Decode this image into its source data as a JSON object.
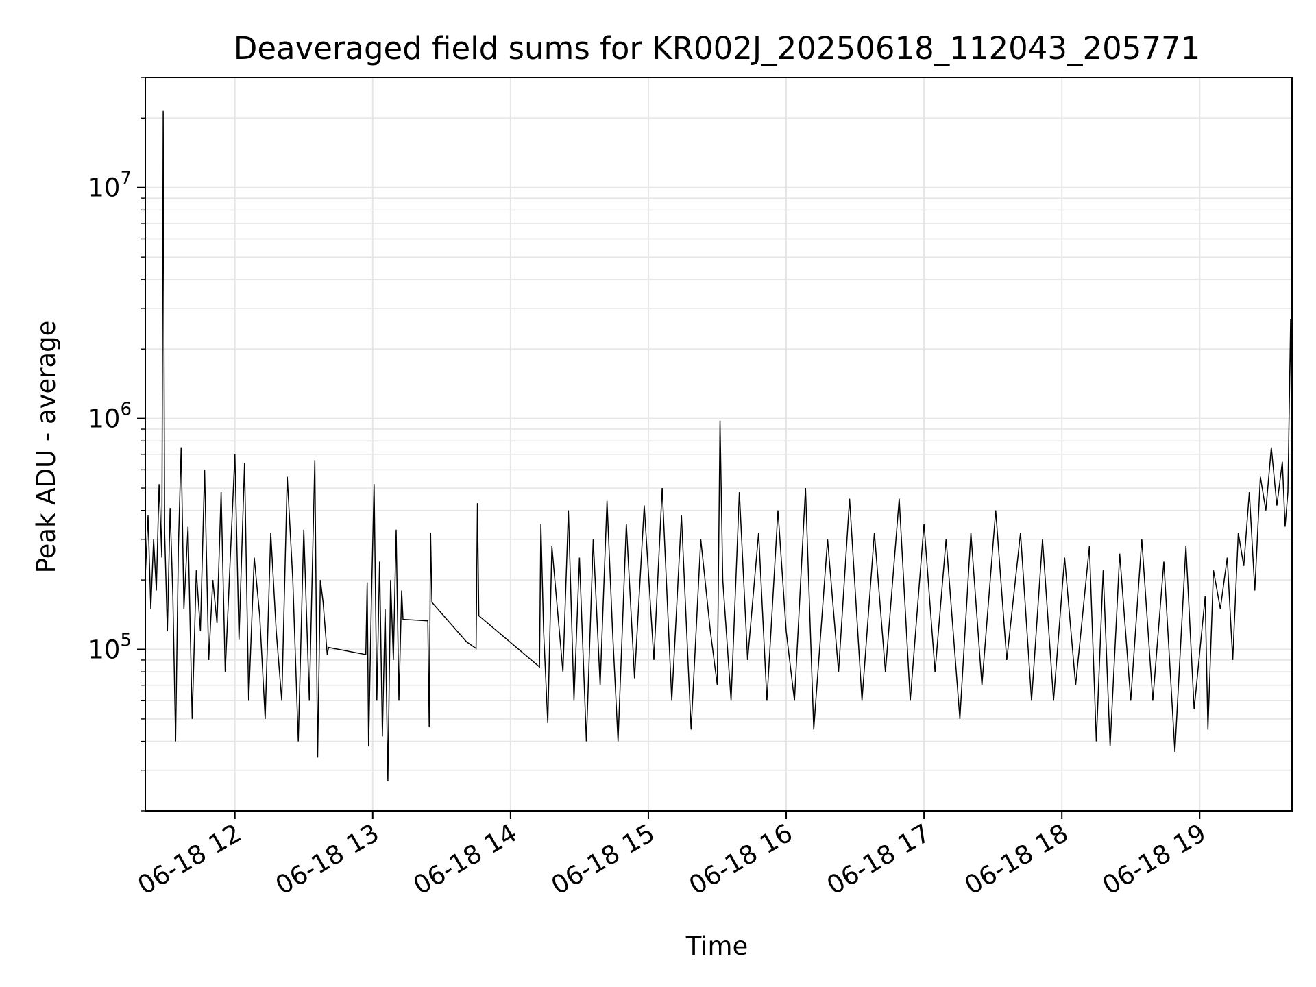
{
  "chart_data": {
    "type": "line",
    "title": "Deaveraged field sums for KR002J_20250618_112043_205771",
    "xlabel": "Time",
    "ylabel": "Peak ADU - average",
    "x_unit": "hours of day, 2025-06-18",
    "y_scale": "log",
    "ylim": [
      20000,
      30000000
    ],
    "xlim": [
      11.35,
      19.67
    ],
    "grid": true,
    "line_color": "#000000",
    "grid_color": "#e6e6e6",
    "x_ticks": [
      {
        "value": 12,
        "label": "06-18 12"
      },
      {
        "value": 13,
        "label": "06-18 13"
      },
      {
        "value": 14,
        "label": "06-18 14"
      },
      {
        "value": 15,
        "label": "06-18 15"
      },
      {
        "value": 16,
        "label": "06-18 16"
      },
      {
        "value": 17,
        "label": "06-18 17"
      },
      {
        "value": 18,
        "label": "06-18 18"
      },
      {
        "value": 19,
        "label": "06-18 19"
      }
    ],
    "y_ticks": [
      {
        "value": 100000,
        "base": "10",
        "exp": "5"
      },
      {
        "value": 1000000,
        "base": "10",
        "exp": "6"
      },
      {
        "value": 10000000,
        "base": "10",
        "exp": "7"
      }
    ],
    "series": [
      {
        "points": [
          [
            11.35,
            210000
          ],
          [
            11.37,
            380000
          ],
          [
            11.39,
            150000
          ],
          [
            11.41,
            300000
          ],
          [
            11.43,
            180000
          ],
          [
            11.45,
            520000
          ],
          [
            11.47,
            250000
          ],
          [
            11.48,
            21500000
          ],
          [
            11.49,
            320000
          ],
          [
            11.51,
            120000
          ],
          [
            11.53,
            410000
          ],
          [
            11.55,
            170000
          ],
          [
            11.57,
            40000
          ],
          [
            11.59,
            280000
          ],
          [
            11.61,
            750000
          ],
          [
            11.63,
            150000
          ],
          [
            11.66,
            340000
          ],
          [
            11.69,
            50000
          ],
          [
            11.72,
            220000
          ],
          [
            11.75,
            120000
          ],
          [
            11.78,
            600000
          ],
          [
            11.81,
            90000
          ],
          [
            11.84,
            200000
          ],
          [
            11.87,
            130000
          ],
          [
            11.9,
            480000
          ],
          [
            11.93,
            80000
          ],
          [
            12.0,
            700000
          ],
          [
            12.03,
            110000
          ],
          [
            12.07,
            640000
          ],
          [
            12.1,
            60000
          ],
          [
            12.14,
            250000
          ],
          [
            12.18,
            140000
          ],
          [
            12.22,
            50000
          ],
          [
            12.26,
            320000
          ],
          [
            12.3,
            120000
          ],
          [
            12.34,
            60000
          ],
          [
            12.38,
            560000
          ],
          [
            12.42,
            200000
          ],
          [
            12.46,
            40000
          ],
          [
            12.5,
            330000
          ],
          [
            12.54,
            60000
          ],
          [
            12.58,
            660000
          ],
          [
            12.6,
            34000
          ],
          [
            12.62,
            200000
          ],
          [
            12.64,
            160000
          ],
          [
            12.67,
            95000
          ],
          [
            12.68,
            102000
          ],
          [
            12.95,
            95000
          ],
          [
            12.96,
            195000
          ],
          [
            12.97,
            38000
          ],
          [
            12.99,
            160000
          ],
          [
            13.01,
            520000
          ],
          [
            13.03,
            60000
          ],
          [
            13.05,
            240000
          ],
          [
            13.07,
            42000
          ],
          [
            13.09,
            150000
          ],
          [
            13.11,
            27000
          ],
          [
            13.13,
            200000
          ],
          [
            13.15,
            90000
          ],
          [
            13.17,
            330000
          ],
          [
            13.19,
            60000
          ],
          [
            13.21,
            180000
          ],
          [
            13.22,
            135000
          ],
          [
            13.4,
            133000
          ],
          [
            13.41,
            46000
          ],
          [
            13.42,
            320000
          ],
          [
            13.43,
            160000
          ],
          [
            13.68,
            108000
          ],
          [
            13.75,
            101000
          ],
          [
            13.76,
            430000
          ],
          [
            13.77,
            140000
          ],
          [
            14.21,
            84000
          ],
          [
            14.22,
            350000
          ],
          [
            14.24,
            120000
          ],
          [
            14.27,
            48000
          ],
          [
            14.3,
            280000
          ],
          [
            14.34,
            150000
          ],
          [
            14.38,
            80000
          ],
          [
            14.42,
            400000
          ],
          [
            14.46,
            60000
          ],
          [
            14.5,
            250000
          ],
          [
            14.55,
            40000
          ],
          [
            14.6,
            300000
          ],
          [
            14.65,
            70000
          ],
          [
            14.7,
            440000
          ],
          [
            14.74,
            120000
          ],
          [
            14.78,
            40000
          ],
          [
            14.84,
            350000
          ],
          [
            14.9,
            75000
          ],
          [
            14.97,
            420000
          ],
          [
            15.04,
            90000
          ],
          [
            15.1,
            500000
          ],
          [
            15.17,
            60000
          ],
          [
            15.24,
            380000
          ],
          [
            15.31,
            45000
          ],
          [
            15.38,
            300000
          ],
          [
            15.45,
            120000
          ],
          [
            15.5,
            70000
          ],
          [
            15.52,
            980000
          ],
          [
            15.54,
            200000
          ],
          [
            15.6,
            60000
          ],
          [
            15.66,
            480000
          ],
          [
            15.72,
            90000
          ],
          [
            15.8,
            320000
          ],
          [
            15.86,
            60000
          ],
          [
            15.94,
            400000
          ],
          [
            16.0,
            120000
          ],
          [
            16.06,
            60000
          ],
          [
            16.14,
            500000
          ],
          [
            16.2,
            45000
          ],
          [
            16.3,
            300000
          ],
          [
            16.38,
            80000
          ],
          [
            16.46,
            450000
          ],
          [
            16.55,
            60000
          ],
          [
            16.64,
            320000
          ],
          [
            16.72,
            80000
          ],
          [
            16.82,
            450000
          ],
          [
            16.9,
            60000
          ],
          [
            17.0,
            350000
          ],
          [
            17.08,
            80000
          ],
          [
            17.16,
            300000
          ],
          [
            17.26,
            50000
          ],
          [
            17.34,
            320000
          ],
          [
            17.42,
            70000
          ],
          [
            17.52,
            400000
          ],
          [
            17.6,
            90000
          ],
          [
            17.7,
            320000
          ],
          [
            17.78,
            60000
          ],
          [
            17.86,
            300000
          ],
          [
            17.94,
            60000
          ],
          [
            18.02,
            250000
          ],
          [
            18.1,
            70000
          ],
          [
            18.2,
            280000
          ],
          [
            18.25,
            40000
          ],
          [
            18.3,
            220000
          ],
          [
            18.35,
            38000
          ],
          [
            18.42,
            260000
          ],
          [
            18.5,
            60000
          ],
          [
            18.58,
            300000
          ],
          [
            18.66,
            60000
          ],
          [
            18.74,
            240000
          ],
          [
            18.82,
            36000
          ],
          [
            18.9,
            280000
          ],
          [
            18.96,
            55000
          ],
          [
            19.04,
            170000
          ],
          [
            19.06,
            45000
          ],
          [
            19.1,
            220000
          ],
          [
            19.15,
            150000
          ],
          [
            19.2,
            250000
          ],
          [
            19.24,
            90000
          ],
          [
            19.28,
            320000
          ],
          [
            19.32,
            230000
          ],
          [
            19.36,
            480000
          ],
          [
            19.4,
            180000
          ],
          [
            19.44,
            560000
          ],
          [
            19.48,
            400000
          ],
          [
            19.52,
            750000
          ],
          [
            19.56,
            420000
          ],
          [
            19.6,
            650000
          ],
          [
            19.62,
            340000
          ],
          [
            19.64,
            480000
          ],
          [
            19.66,
            2700000
          ],
          [
            19.67,
            580000
          ]
        ]
      }
    ]
  }
}
